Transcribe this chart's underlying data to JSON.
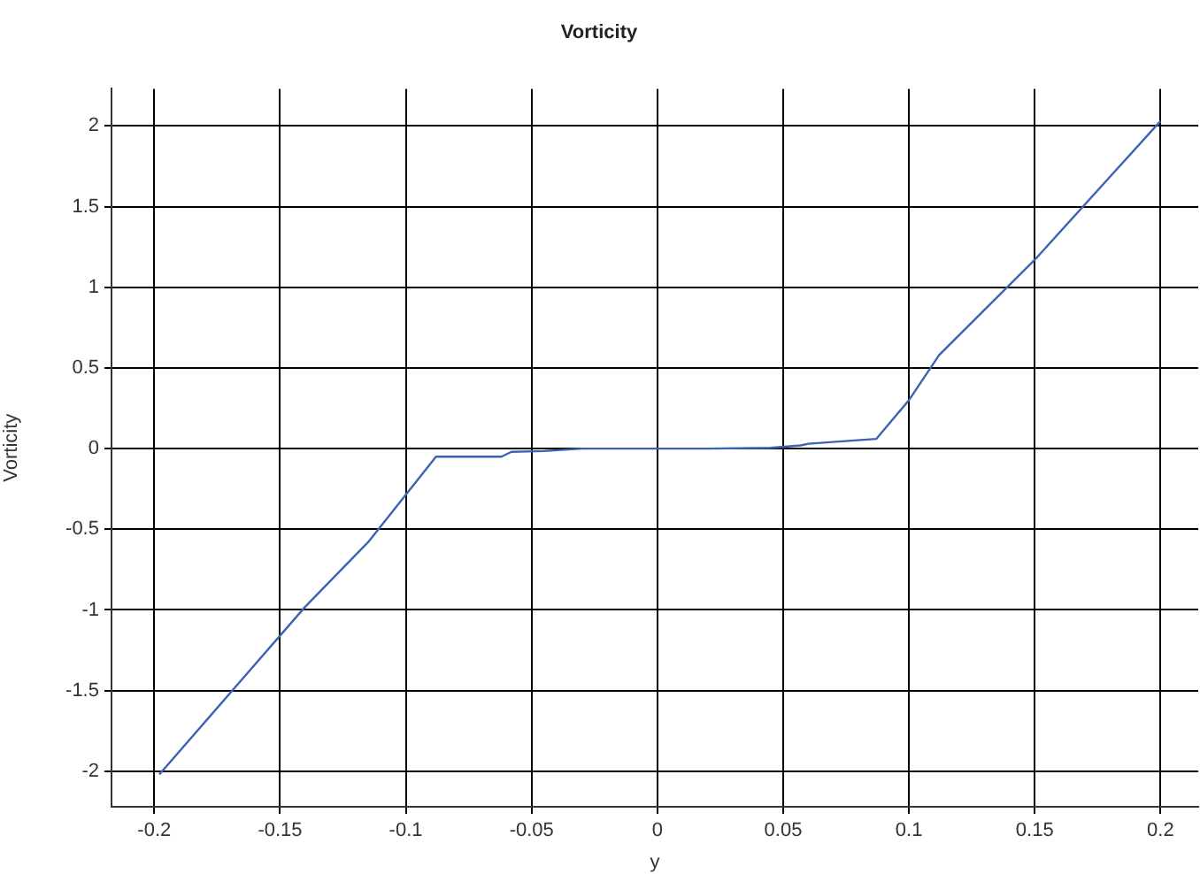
{
  "chart_data": {
    "type": "line",
    "title": "Vorticity",
    "xlabel": "y",
    "ylabel": "Vorticity",
    "x": [
      -0.198,
      -0.14,
      -0.115,
      -0.088,
      -0.062,
      -0.058,
      -0.045,
      -0.03,
      0.02,
      0.045,
      0.057,
      0.06,
      0.087,
      0.1,
      0.112,
      0.15,
      0.2
    ],
    "series": [
      {
        "color": "#3d62b3",
        "values": [
          -2.02,
          -0.98,
          -0.58,
          -0.05,
          -0.05,
          -0.02,
          -0.015,
          0,
          0,
          0.005,
          0.02,
          0.03,
          0.06,
          0.3,
          0.58,
          1.17,
          2.03
        ]
      }
    ],
    "xlim": [
      -0.217,
      0.215
    ],
    "xticks": [
      -0.2,
      -0.15,
      -0.1,
      -0.05,
      0,
      0.05,
      0.1,
      0.15,
      0.2
    ],
    "ylim": [
      -2.22,
      2.23
    ],
    "yticks": [
      -2,
      -1.5,
      -1,
      -0.5,
      0,
      0.5,
      1,
      1.5,
      2
    ],
    "grid": true,
    "legend": false,
    "marker": "none",
    "line_style": "solid"
  }
}
